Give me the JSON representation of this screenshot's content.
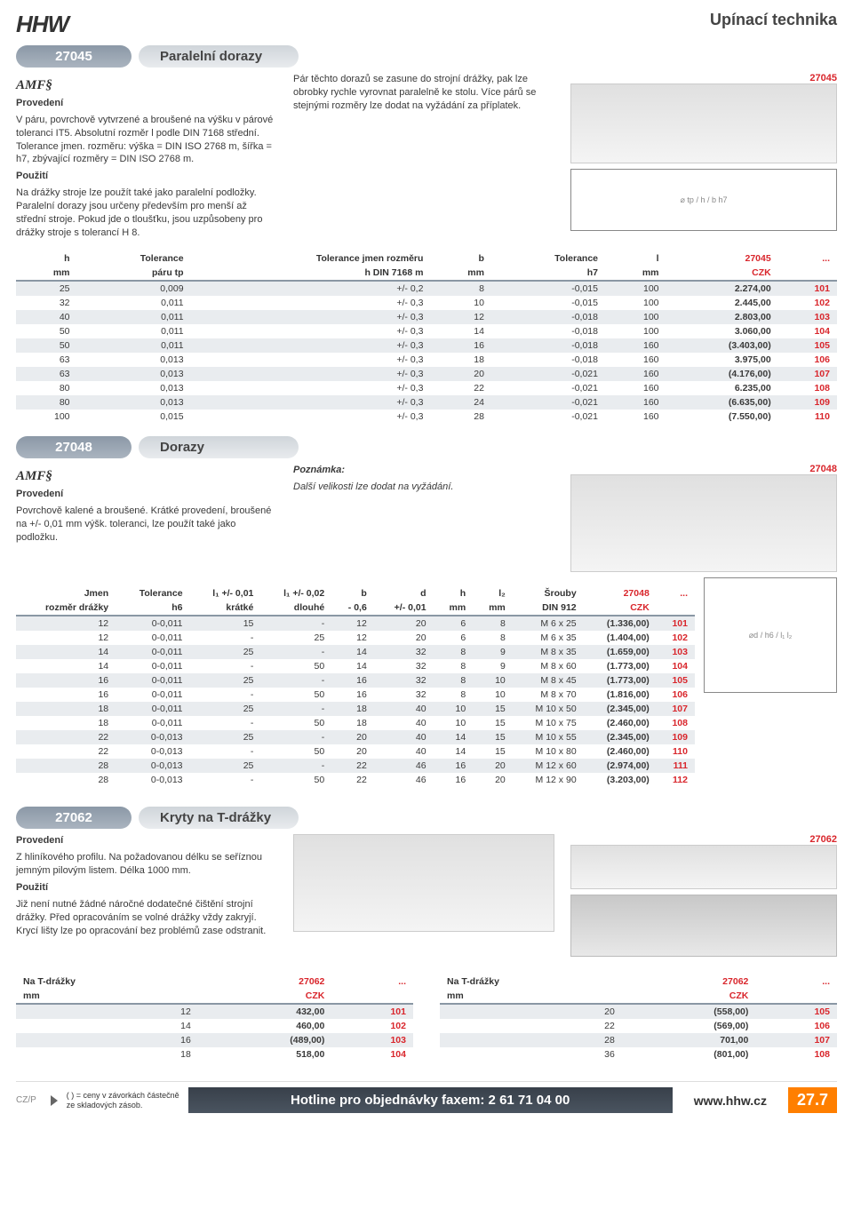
{
  "header": {
    "logo": "HHW",
    "category": "Upínací technika"
  },
  "sections": [
    {
      "code": "27045",
      "title": "Paralelní dorazy",
      "brand": "AMF§",
      "col_left": {
        "h1": "Provedení",
        "p1": "V páru, povrchově vytvrzené a broušené na výšku v párové toleranci IT5. Absolutní rozměr l podle DIN 7168 střední. Tolerance jmen. rozměru: výška = DIN ISO 2768 m, šířka = h7, zbývající rozměry = DIN ISO 2768 m.",
        "h2": "Použití",
        "p2": "Na drážky stroje lze použít také jako paralelní podložky. Paralelní dorazy jsou určeny především pro menší až střední stroje. Pokud jde o tloušťku, jsou uzpůsobeny pro drážky stroje s tolerancí H 8."
      },
      "col_mid": {
        "p": "Pár těchto dorazů se zasune do strojní drážky, pak lze obrobky rychle vyrovnat paralelně ke stolu. Více párů se stejnými rozměry lze dodat na vyžádání za příplatek."
      },
      "side_code": "27045",
      "table": {
        "hdr1": [
          "h",
          "Tolerance",
          "Tolerance jmen rozměru",
          "b",
          "Tolerance",
          "l",
          "27045",
          "..."
        ],
        "hdr2": [
          "mm",
          "páru tp",
          "h DIN 7168 m",
          "mm",
          "h7",
          "mm",
          "CZK",
          ""
        ],
        "rows": [
          [
            "25",
            "0,009",
            "+/- 0,2",
            "8",
            "-0,015",
            "100",
            "2.274,00",
            "101"
          ],
          [
            "32",
            "0,011",
            "+/- 0,3",
            "10",
            "-0,015",
            "100",
            "2.445,00",
            "102"
          ],
          [
            "40",
            "0,011",
            "+/- 0,3",
            "12",
            "-0,018",
            "100",
            "2.803,00",
            "103"
          ],
          [
            "50",
            "0,011",
            "+/- 0,3",
            "14",
            "-0,018",
            "100",
            "3.060,00",
            "104"
          ],
          [
            "50",
            "0,011",
            "+/- 0,3",
            "16",
            "-0,018",
            "160",
            "(3.403,00)",
            "105"
          ],
          [
            "63",
            "0,013",
            "+/- 0,3",
            "18",
            "-0,018",
            "160",
            "3.975,00",
            "106"
          ],
          [
            "63",
            "0,013",
            "+/- 0,3",
            "20",
            "-0,021",
            "160",
            "(4.176,00)",
            "107"
          ],
          [
            "80",
            "0,013",
            "+/- 0,3",
            "22",
            "-0,021",
            "160",
            "6.235,00",
            "108"
          ],
          [
            "80",
            "0,013",
            "+/- 0,3",
            "24",
            "-0,021",
            "160",
            "(6.635,00)",
            "109"
          ],
          [
            "100",
            "0,015",
            "+/- 0,3",
            "28",
            "-0,021",
            "160",
            "(7.550,00)",
            "110"
          ]
        ]
      }
    },
    {
      "code": "27048",
      "title": "Dorazy",
      "brand": "AMF§",
      "col_left": {
        "h1": "Provedení",
        "p1": "Povrchově kalené a broušené. Krátké provedení, broušené na +/- 0,01 mm výšk. toleranci, lze použít také jako podložku."
      },
      "col_mid": {
        "h": "Poznámka:",
        "p": "Další velikosti lze dodat na vyžádání."
      },
      "side_code": "27048",
      "table": {
        "hdr1": [
          "Jmen",
          "Tolerance",
          "l₁ +/- 0,01",
          "l₁ +/- 0,02",
          "b",
          "d",
          "h",
          "l₂",
          "Šrouby",
          "27048",
          "..."
        ],
        "hdr2": [
          "rozměr drážky",
          "h6",
          "krátké",
          "dlouhé",
          "- 0,6",
          "+/- 0,01",
          "mm",
          "mm",
          "DIN 912",
          "CZK",
          ""
        ],
        "rows": [
          [
            "12",
            "0-0,011",
            "15",
            "-",
            "12",
            "20",
            "6",
            "8",
            "M 6 x 25",
            "(1.336,00)",
            "101"
          ],
          [
            "12",
            "0-0,011",
            "-",
            "25",
            "12",
            "20",
            "6",
            "8",
            "M 6 x 35",
            "(1.404,00)",
            "102"
          ],
          [
            "14",
            "0-0,011",
            "25",
            "-",
            "14",
            "32",
            "8",
            "9",
            "M 8 x 35",
            "(1.659,00)",
            "103"
          ],
          [
            "14",
            "0-0,011",
            "-",
            "50",
            "14",
            "32",
            "8",
            "9",
            "M 8 x 60",
            "(1.773,00)",
            "104"
          ],
          [
            "16",
            "0-0,011",
            "25",
            "-",
            "16",
            "32",
            "8",
            "10",
            "M 8 x 45",
            "(1.773,00)",
            "105"
          ],
          [
            "16",
            "0-0,011",
            "-",
            "50",
            "16",
            "32",
            "8",
            "10",
            "M 8 x 70",
            "(1.816,00)",
            "106"
          ],
          [
            "18",
            "0-0,011",
            "25",
            "-",
            "18",
            "40",
            "10",
            "15",
            "M 10 x 50",
            "(2.345,00)",
            "107"
          ],
          [
            "18",
            "0-0,011",
            "-",
            "50",
            "18",
            "40",
            "10",
            "15",
            "M 10 x 75",
            "(2.460,00)",
            "108"
          ],
          [
            "22",
            "0-0,013",
            "25",
            "-",
            "20",
            "40",
            "14",
            "15",
            "M 10 x 55",
            "(2.345,00)",
            "109"
          ],
          [
            "22",
            "0-0,013",
            "-",
            "50",
            "20",
            "40",
            "14",
            "15",
            "M 10 x 80",
            "(2.460,00)",
            "110"
          ],
          [
            "28",
            "0-0,013",
            "25",
            "-",
            "22",
            "46",
            "16",
            "20",
            "M 12 x 60",
            "(2.974,00)",
            "111"
          ],
          [
            "28",
            "0-0,013",
            "-",
            "50",
            "22",
            "46",
            "16",
            "20",
            "M 12 x 90",
            "(3.203,00)",
            "112"
          ]
        ]
      }
    },
    {
      "code": "27062",
      "title": "Kryty na T-drážky",
      "col_left": {
        "h1": "Provedení",
        "p1": "Z hliníkového profilu. Na požadovanou délku se seříznou jemným pilovým listem. Délka 1000 mm.",
        "h2": "Použití",
        "p2": "Již není nutné žádné náročné dodatečné čištění strojní drážky. Před opracováním se volné drážky vždy zakryjí. Krycí lišty lze po opracování bez problémů zase odstranit."
      },
      "side_code": "27062",
      "table_a": {
        "hdr1": [
          "Na T-drážky",
          "27062",
          "..."
        ],
        "hdr2": [
          "mm",
          "CZK",
          ""
        ],
        "rows": [
          [
            "12",
            "432,00",
            "101"
          ],
          [
            "14",
            "460,00",
            "102"
          ],
          [
            "16",
            "(489,00)",
            "103"
          ],
          [
            "18",
            "518,00",
            "104"
          ]
        ]
      },
      "table_b": {
        "hdr1": [
          "Na T-drážky",
          "27062",
          "..."
        ],
        "hdr2": [
          "mm",
          "CZK",
          ""
        ],
        "rows": [
          [
            "20",
            "(558,00)",
            "105"
          ],
          [
            "22",
            "(569,00)",
            "106"
          ],
          [
            "28",
            "701,00",
            "107"
          ],
          [
            "36",
            "(801,00)",
            "108"
          ]
        ]
      }
    }
  ],
  "footer": {
    "czp": "CZ/P",
    "note1": "( ) = ceny v závorkách částečně",
    "note2": "ze skladových zásob.",
    "hotline": "Hotline pro objednávky faxem: 2 61 71 04 00",
    "url": "www.hhw.cz",
    "page": "27.7"
  }
}
